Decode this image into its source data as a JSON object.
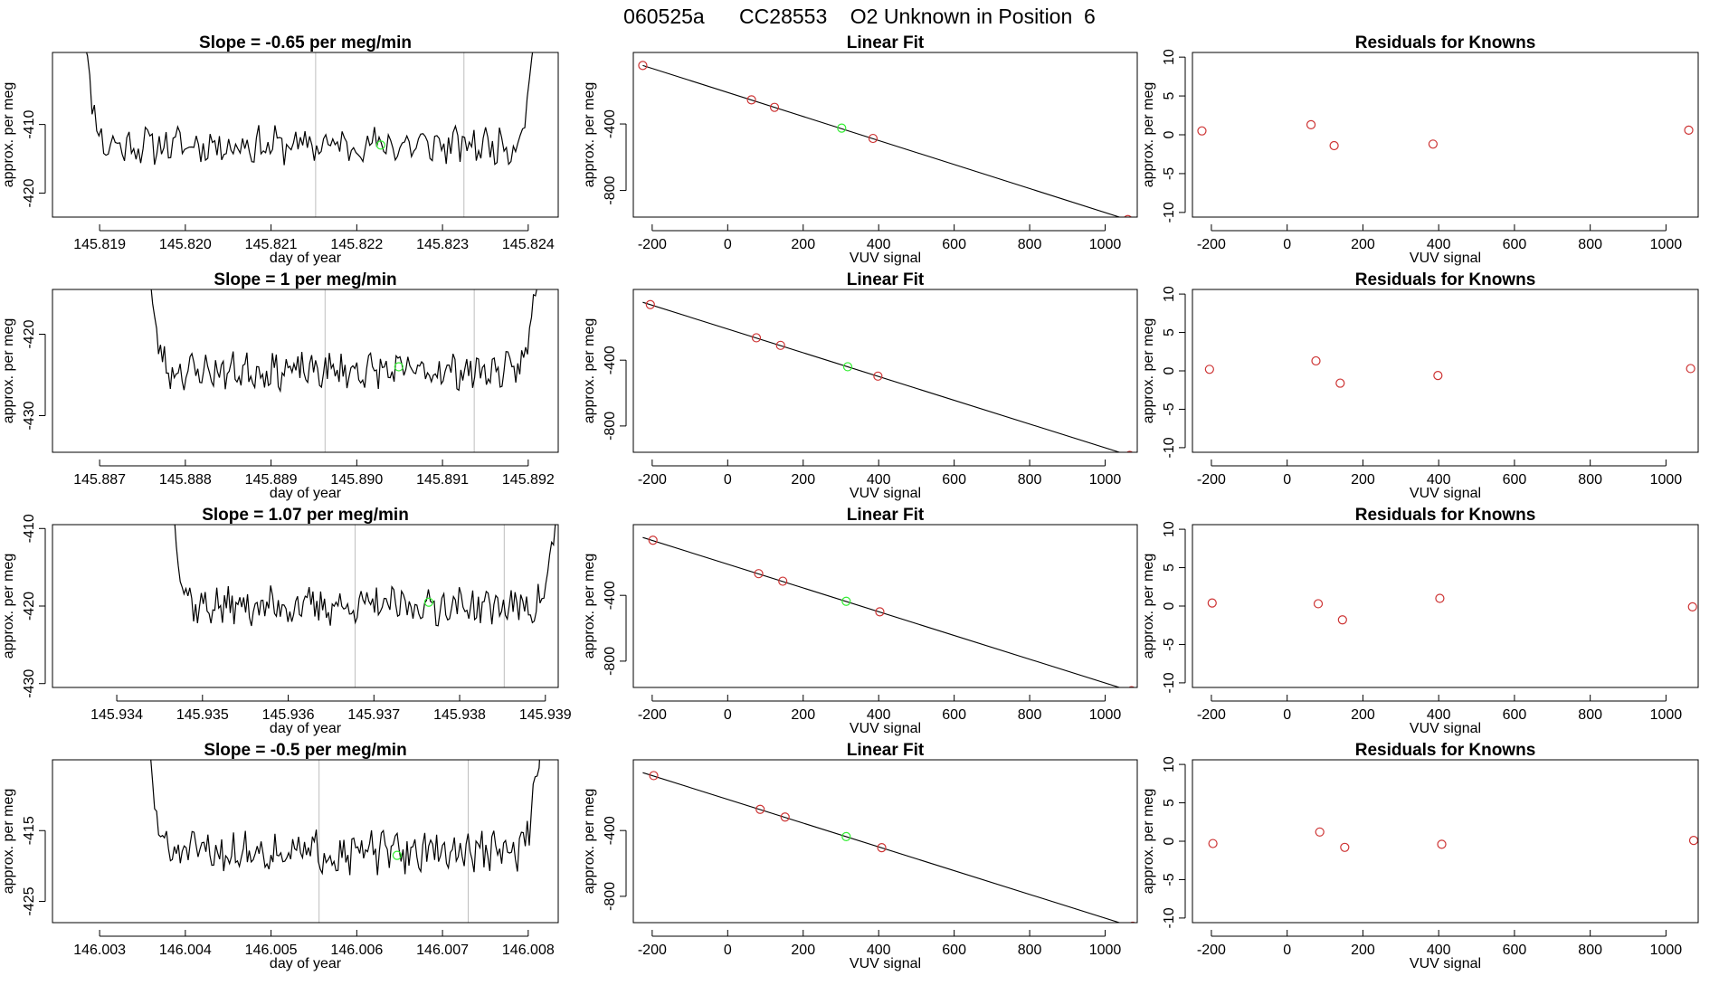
{
  "figure": {
    "title": "060525a      CC28553    O2 Unknown in Position  6"
  },
  "colors": {
    "known": "#cd3333",
    "unknown": "#33ee33",
    "line": "#000000",
    "vline": "#bebebe"
  },
  "chart_data": [
    {
      "type": "line",
      "row": 0,
      "title": "Slope =  -0.65  per meg/min",
      "xlabel": "day of year",
      "ylabel": "approx. per meg",
      "xlim": [
        145.81845,
        145.82435
      ],
      "ylim": [
        -423.5,
        -399.5
      ],
      "xticks": [
        "145.819",
        "145.820",
        "145.821",
        "145.822",
        "145.823",
        "145.824"
      ],
      "yticks": [
        "-410",
        "-420"
      ],
      "vlines": [
        145.82152,
        145.82325
      ],
      "unknown_point": {
        "x": 145.82228,
        "y": -413.0
      },
      "trace": {
        "x_start": 145.81875,
        "x_end": 145.82415,
        "base": -413.0,
        "amplitude": 2.2,
        "edge_rise": 28,
        "seed": 11
      }
    },
    {
      "type": "line",
      "row": 1,
      "title": "Slope =  1  per meg/min",
      "xlabel": "day of year",
      "ylabel": "approx. per meg",
      "xlim": [
        145.88645,
        145.89235
      ],
      "ylim": [
        -434.5,
        -414.5
      ],
      "xticks": [
        "145.887",
        "145.888",
        "145.889",
        "145.890",
        "145.891",
        "145.892"
      ],
      "yticks": [
        "-420",
        "-430"
      ],
      "vlines": [
        145.88963,
        145.89137
      ],
      "unknown_point": {
        "x": 145.89049,
        "y": -424.0
      },
      "trace": {
        "x_start": 145.88755,
        "x_end": 145.89213,
        "base": -424.5,
        "amplitude": 1.8,
        "edge_rise": 14,
        "seed": 23
      }
    },
    {
      "type": "line",
      "row": 2,
      "title": "Slope =  1.07  per meg/min",
      "xlabel": "day of year",
      "ylabel": "approx. per meg",
      "xlim": [
        145.93325,
        145.93915
      ],
      "ylim": [
        -430.5,
        -409.5
      ],
      "xticks": [
        "145.934",
        "145.935",
        "145.936",
        "145.937",
        "145.938",
        "145.939"
      ],
      "yticks": [
        "-410",
        "-420",
        "-430"
      ],
      "vlines": [
        145.93678,
        145.93852
      ],
      "unknown_point": {
        "x": 145.93764,
        "y": -419.5
      },
      "trace": {
        "x_start": 145.93465,
        "x_end": 145.93914,
        "base": -420.0,
        "amplitude": 2.0,
        "edge_rise": 12,
        "seed": 37
      }
    },
    {
      "type": "line",
      "row": 3,
      "title": "Slope =  -0.5  per meg/min",
      "xlabel": "day of year",
      "ylabel": "approx. per meg",
      "xlim": [
        146.00245,
        146.00835
      ],
      "ylim": [
        -428.0,
        -405.0
      ],
      "xticks": [
        "146.003",
        "146.004",
        "146.005",
        "146.006",
        "146.007",
        "146.008"
      ],
      "yticks": [
        "-415",
        "-425"
      ],
      "vlines": [
        146.00556,
        146.0073
      ],
      "unknown_point": {
        "x": 146.00647,
        "y": -418.5
      },
      "trace": {
        "x_start": 146.00355,
        "x_end": 146.00815,
        "base": -418.0,
        "amplitude": 2.4,
        "edge_rise": 16,
        "seed": 51
      }
    },
    {
      "type": "scatter",
      "row": 0,
      "title": "Linear Fit",
      "xlabel": "VUV signal",
      "ylabel": "approx. per meg",
      "xlim": [
        -250,
        1085
      ],
      "ylim": [
        -960,
        30
      ],
      "xticks": [
        "-200",
        "0",
        "200",
        "400",
        "600",
        "800",
        "1000"
      ],
      "yticks": [
        "-400",
        "-800"
      ],
      "knowns": [
        {
          "x": -225,
          "y": -48
        },
        {
          "x": 63,
          "y": -255
        },
        {
          "x": 124,
          "y": -300
        },
        {
          "x": 385,
          "y": -487
        },
        {
          "x": 1060,
          "y": -975
        }
      ],
      "unknown": {
        "x": 302,
        "y": -425
      },
      "fit": {
        "x": [
          -225,
          1075
        ],
        "y": [
          -48,
          -987
        ]
      }
    },
    {
      "type": "scatter",
      "row": 1,
      "title": "Linear Fit",
      "xlabel": "VUV signal",
      "ylabel": "approx. per meg",
      "xlim": [
        -250,
        1085
      ],
      "ylim": [
        -960,
        30
      ],
      "xticks": [
        "-200",
        "0",
        "200",
        "400",
        "600",
        "800",
        "1000"
      ],
      "yticks": [
        "-400",
        "-800"
      ],
      "knowns": [
        {
          "x": -205,
          "y": -62
        },
        {
          "x": 76,
          "y": -264
        },
        {
          "x": 140,
          "y": -310
        },
        {
          "x": 398,
          "y": -497
        },
        {
          "x": 1065,
          "y": -979
        }
      ],
      "unknown": {
        "x": 318,
        "y": -440
      },
      "fit": {
        "x": [
          -225,
          1075
        ],
        "y": [
          -48,
          -987
        ]
      }
    },
    {
      "type": "scatter",
      "row": 2,
      "title": "Linear Fit",
      "xlabel": "VUV signal",
      "ylabel": "approx. per meg",
      "xlim": [
        -250,
        1085
      ],
      "ylim": [
        -960,
        30
      ],
      "xticks": [
        "-200",
        "0",
        "200",
        "400",
        "600",
        "800",
        "1000"
      ],
      "yticks": [
        "-400",
        "-800"
      ],
      "knowns": [
        {
          "x": -198,
          "y": -65
        },
        {
          "x": 82,
          "y": -268
        },
        {
          "x": 146,
          "y": -314
        },
        {
          "x": 403,
          "y": -500
        },
        {
          "x": 1070,
          "y": -980
        }
      ],
      "unknown": {
        "x": 314,
        "y": -436
      },
      "fit": {
        "x": [
          -225,
          1075
        ],
        "y": [
          -48,
          -987
        ]
      }
    },
    {
      "type": "scatter",
      "row": 3,
      "title": "Linear Fit",
      "xlabel": "VUV signal",
      "ylabel": "approx. per meg",
      "xlim": [
        -250,
        1085
      ],
      "ylim": [
        -960,
        30
      ],
      "xticks": [
        "-200",
        "0",
        "200",
        "400",
        "600",
        "800",
        "1000"
      ],
      "yticks": [
        "-400",
        "-800"
      ],
      "knowns": [
        {
          "x": -196,
          "y": -66
        },
        {
          "x": 86,
          "y": -271
        },
        {
          "x": 152,
          "y": -318
        },
        {
          "x": 408,
          "y": -504
        },
        {
          "x": 1073,
          "y": -982
        }
      ],
      "unknown": {
        "x": 314,
        "y": -437
      },
      "fit": {
        "x": [
          -225,
          1075
        ],
        "y": [
          -48,
          -987
        ]
      }
    },
    {
      "type": "scatter",
      "row": 0,
      "title": "Residuals for Knowns",
      "xlabel": "VUV signal",
      "ylabel": "approx. per meg",
      "xlim": [
        -250,
        1085
      ],
      "ylim": [
        -10.6,
        10.6
      ],
      "xticks": [
        "-200",
        "0",
        "200",
        "400",
        "600",
        "800",
        "1000"
      ],
      "yticks": [
        "10",
        "5",
        "0",
        "-5",
        "-10"
      ],
      "yvals": [
        10,
        5,
        0,
        -5,
        -10
      ],
      "knowns": [
        {
          "x": -225,
          "y": 0.5
        },
        {
          "x": 63,
          "y": 1.3
        },
        {
          "x": 124,
          "y": -1.4
        },
        {
          "x": 385,
          "y": -1.2
        },
        {
          "x": 1060,
          "y": 0.6
        }
      ]
    },
    {
      "type": "scatter",
      "row": 1,
      "title": "Residuals for Knowns",
      "xlabel": "VUV signal",
      "ylabel": "approx. per meg",
      "xlim": [
        -250,
        1085
      ],
      "ylim": [
        -10.6,
        10.6
      ],
      "xticks": [
        "-200",
        "0",
        "200",
        "400",
        "600",
        "800",
        "1000"
      ],
      "yticks": [
        "10",
        "5",
        "0",
        "-5",
        "-10"
      ],
      "yvals": [
        10,
        5,
        0,
        -5,
        -10
      ],
      "knowns": [
        {
          "x": -205,
          "y": 0.2
        },
        {
          "x": 76,
          "y": 1.3
        },
        {
          "x": 140,
          "y": -1.6
        },
        {
          "x": 398,
          "y": -0.6
        },
        {
          "x": 1065,
          "y": 0.3
        }
      ]
    },
    {
      "type": "scatter",
      "row": 2,
      "title": "Residuals for Knowns",
      "xlabel": "VUV signal",
      "ylabel": "approx. per meg",
      "xlim": [
        -250,
        1085
      ],
      "ylim": [
        -10.6,
        10.6
      ],
      "xticks": [
        "-200",
        "0",
        "200",
        "400",
        "600",
        "800",
        "1000"
      ],
      "yticks": [
        "10",
        "5",
        "0",
        "-5",
        "-10"
      ],
      "yvals": [
        10,
        5,
        0,
        -5,
        -10
      ],
      "knowns": [
        {
          "x": -198,
          "y": 0.4
        },
        {
          "x": 82,
          "y": 0.3
        },
        {
          "x": 146,
          "y": -1.8
        },
        {
          "x": 403,
          "y": 1.0
        },
        {
          "x": 1070,
          "y": -0.1
        }
      ]
    },
    {
      "type": "scatter",
      "row": 3,
      "title": "Residuals for Knowns",
      "xlabel": "VUV signal",
      "ylabel": "approx. per meg",
      "xlim": [
        -250,
        1085
      ],
      "ylim": [
        -10.6,
        10.6
      ],
      "xticks": [
        "-200",
        "0",
        "200",
        "400",
        "600",
        "800",
        "1000"
      ],
      "yticks": [
        "10",
        "5",
        "0",
        "-5",
        "-10"
      ],
      "yvals": [
        10,
        5,
        0,
        -5,
        -10
      ],
      "knowns": [
        {
          "x": -196,
          "y": -0.3
        },
        {
          "x": 86,
          "y": 1.2
        },
        {
          "x": 152,
          "y": -0.8
        },
        {
          "x": 408,
          "y": -0.4
        },
        {
          "x": 1073,
          "y": 0.1
        }
      ]
    }
  ]
}
